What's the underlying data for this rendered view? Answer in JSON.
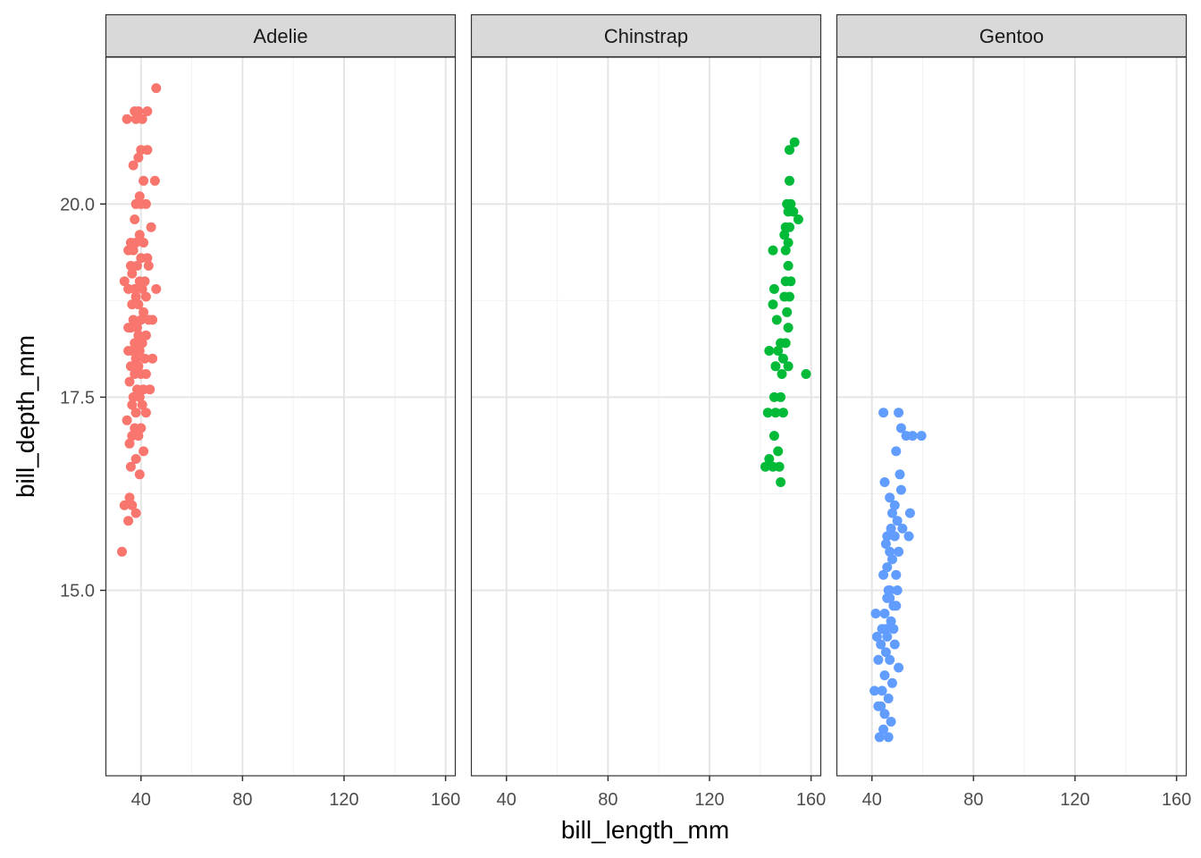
{
  "chart_data": {
    "type": "scatter",
    "facet_by": "species",
    "xlabel": "bill_length_mm",
    "ylabel": "bill_depth_mm",
    "xlim": [
      26,
      164
    ],
    "ylim": [
      12.6,
      21.9
    ],
    "xticks": [
      40,
      80,
      120,
      160
    ],
    "yticks": [
      15.0,
      17.5,
      20.0
    ],
    "xtick_labels": [
      "40",
      "80",
      "120",
      "160"
    ],
    "ytick_labels": [
      "15.0",
      "17.5",
      "20.0"
    ],
    "grid": true,
    "legend": "none",
    "panels": [
      {
        "name": "Adelie",
        "color": "#F8766D",
        "points": [
          [
            46.0,
            21.5
          ],
          [
            34.5,
            21.1
          ],
          [
            37.5,
            21.2
          ],
          [
            39.0,
            21.2
          ],
          [
            42.5,
            21.2
          ],
          [
            38.0,
            21.1
          ],
          [
            40.5,
            21.1
          ],
          [
            40.0,
            20.7
          ],
          [
            42.5,
            20.7
          ],
          [
            39.0,
            20.6
          ],
          [
            37.0,
            20.5
          ],
          [
            45.5,
            20.3
          ],
          [
            41.0,
            20.3
          ],
          [
            39.5,
            20.1
          ],
          [
            38.0,
            20.0
          ],
          [
            40.0,
            20.0
          ],
          [
            42.0,
            20.0
          ],
          [
            37.5,
            19.8
          ],
          [
            44.0,
            19.7
          ],
          [
            39.5,
            19.6
          ],
          [
            36.0,
            19.5
          ],
          [
            38.0,
            19.5
          ],
          [
            41.0,
            19.5
          ],
          [
            35.0,
            19.4
          ],
          [
            37.0,
            19.4
          ],
          [
            40.0,
            19.3
          ],
          [
            42.5,
            19.3
          ],
          [
            36.0,
            19.2
          ],
          [
            38.5,
            19.2
          ],
          [
            43.0,
            19.2
          ],
          [
            36.5,
            19.1
          ],
          [
            39.5,
            19.0
          ],
          [
            41.5,
            19.0
          ],
          [
            33.5,
            19.0
          ],
          [
            37.5,
            18.9
          ],
          [
            40.5,
            18.9
          ],
          [
            46.0,
            18.9
          ],
          [
            35.0,
            18.9
          ],
          [
            38.0,
            18.8
          ],
          [
            42.0,
            18.8
          ],
          [
            36.5,
            18.7
          ],
          [
            39.0,
            18.7
          ],
          [
            41.0,
            18.6
          ],
          [
            37.0,
            18.5
          ],
          [
            40.0,
            18.5
          ],
          [
            43.0,
            18.5
          ],
          [
            44.5,
            18.5
          ],
          [
            36.0,
            18.4
          ],
          [
            38.5,
            18.4
          ],
          [
            35.0,
            18.4
          ],
          [
            39.0,
            18.3
          ],
          [
            42.0,
            18.3
          ],
          [
            37.5,
            18.2
          ],
          [
            40.5,
            18.2
          ],
          [
            36.5,
            18.1
          ],
          [
            39.5,
            18.1
          ],
          [
            35.0,
            18.1
          ],
          [
            38.0,
            18.0
          ],
          [
            41.5,
            18.0
          ],
          [
            44.5,
            18.0
          ],
          [
            36.0,
            17.9
          ],
          [
            39.0,
            17.9
          ],
          [
            37.5,
            17.8
          ],
          [
            40.0,
            17.8
          ],
          [
            42.0,
            17.8
          ],
          [
            35.5,
            17.7
          ],
          [
            38.5,
            17.6
          ],
          [
            41.0,
            17.6
          ],
          [
            43.5,
            17.6
          ],
          [
            37.0,
            17.5
          ],
          [
            39.5,
            17.5
          ],
          [
            36.5,
            17.4
          ],
          [
            40.5,
            17.4
          ],
          [
            38.0,
            17.3
          ],
          [
            42.0,
            17.3
          ],
          [
            34.5,
            17.2
          ],
          [
            37.5,
            17.1
          ],
          [
            40.0,
            17.1
          ],
          [
            36.5,
            17.0
          ],
          [
            39.0,
            17.0
          ],
          [
            35.5,
            16.9
          ],
          [
            41.0,
            16.8
          ],
          [
            38.0,
            16.7
          ],
          [
            36.0,
            16.6
          ],
          [
            39.5,
            16.5
          ],
          [
            35.5,
            16.2
          ],
          [
            33.5,
            16.1
          ],
          [
            36.5,
            16.1
          ],
          [
            38.0,
            16.0
          ],
          [
            35.0,
            15.9
          ],
          [
            32.5,
            15.5
          ]
        ]
      },
      {
        "name": "Chinstrap",
        "color": "#00BA38",
        "points": [
          [
            153.5,
            20.8
          ],
          [
            151.5,
            20.7
          ],
          [
            151.5,
            20.3
          ],
          [
            150.5,
            20.0
          ],
          [
            152.0,
            20.0
          ],
          [
            151.0,
            19.9
          ],
          [
            153.0,
            19.9
          ],
          [
            155.0,
            19.8
          ],
          [
            150.0,
            19.7
          ],
          [
            151.5,
            19.7
          ],
          [
            149.5,
            19.6
          ],
          [
            151.0,
            19.5
          ],
          [
            150.0,
            19.4
          ],
          [
            145.0,
            19.4
          ],
          [
            151.0,
            19.2
          ],
          [
            150.0,
            19.0
          ],
          [
            152.0,
            19.0
          ],
          [
            145.5,
            18.9
          ],
          [
            151.5,
            18.8
          ],
          [
            149.5,
            18.8
          ],
          [
            145.0,
            18.7
          ],
          [
            150.5,
            18.6
          ],
          [
            146.5,
            18.5
          ],
          [
            151.0,
            18.4
          ],
          [
            148.0,
            18.2
          ],
          [
            150.0,
            18.2
          ],
          [
            147.0,
            18.1
          ],
          [
            143.5,
            18.1
          ],
          [
            149.0,
            18.0
          ],
          [
            151.0,
            17.9
          ],
          [
            146.0,
            17.9
          ],
          [
            148.5,
            17.8
          ],
          [
            158.0,
            17.8
          ],
          [
            145.5,
            17.5
          ],
          [
            148.0,
            17.5
          ],
          [
            149.0,
            17.3
          ],
          [
            143.0,
            17.3
          ],
          [
            146.0,
            17.3
          ],
          [
            145.5,
            17.0
          ],
          [
            147.0,
            16.8
          ],
          [
            143.5,
            16.7
          ],
          [
            145.0,
            16.6
          ],
          [
            147.5,
            16.6
          ],
          [
            142.0,
            16.6
          ],
          [
            148.0,
            16.4
          ]
        ]
      },
      {
        "name": "Gentoo",
        "color": "#619CFF",
        "points": [
          [
            44.5,
            17.3
          ],
          [
            50.5,
            17.3
          ],
          [
            51.5,
            17.1
          ],
          [
            53.5,
            17.0
          ],
          [
            56.0,
            17.0
          ],
          [
            59.5,
            17.0
          ],
          [
            49.5,
            16.8
          ],
          [
            51.0,
            16.5
          ],
          [
            45.0,
            16.4
          ],
          [
            51.5,
            16.3
          ],
          [
            47.0,
            16.2
          ],
          [
            49.0,
            16.1
          ],
          [
            48.0,
            16.0
          ],
          [
            55.0,
            16.0
          ],
          [
            50.0,
            15.9
          ],
          [
            47.5,
            15.8
          ],
          [
            52.0,
            15.8
          ],
          [
            46.0,
            15.7
          ],
          [
            49.0,
            15.7
          ],
          [
            54.5,
            15.7
          ],
          [
            45.5,
            15.6
          ],
          [
            50.5,
            15.5
          ],
          [
            48.0,
            15.4
          ],
          [
            46.0,
            15.3
          ],
          [
            49.5,
            15.2
          ],
          [
            44.5,
            15.2
          ],
          [
            47.0,
            15.0
          ],
          [
            50.0,
            15.0
          ],
          [
            46.0,
            14.9
          ],
          [
            48.5,
            14.8
          ],
          [
            45.0,
            14.7
          ],
          [
            41.5,
            14.7
          ],
          [
            47.5,
            14.6
          ],
          [
            44.0,
            14.5
          ],
          [
            48.5,
            14.5
          ],
          [
            46.0,
            14.4
          ],
          [
            43.5,
            14.3
          ],
          [
            49.0,
            14.3
          ],
          [
            45.5,
            14.2
          ],
          [
            47.0,
            14.1
          ],
          [
            42.5,
            14.1
          ],
          [
            50.5,
            14.0
          ],
          [
            45.0,
            13.9
          ],
          [
            48.0,
            13.8
          ],
          [
            44.0,
            13.7
          ],
          [
            41.0,
            13.7
          ],
          [
            46.5,
            13.6
          ],
          [
            43.5,
            13.5
          ],
          [
            45.0,
            13.4
          ],
          [
            47.5,
            13.3
          ],
          [
            44.5,
            13.2
          ],
          [
            46.5,
            13.1
          ],
          [
            43.0,
            13.1
          ],
          [
            42.5,
            13.5
          ],
          [
            47.0,
            14.9
          ],
          [
            45.5,
            14.5
          ],
          [
            49.5,
            14.8
          ],
          [
            42.0,
            14.4
          ],
          [
            47.0,
            15.5
          ],
          [
            46.5,
            15.0
          ]
        ]
      }
    ]
  }
}
